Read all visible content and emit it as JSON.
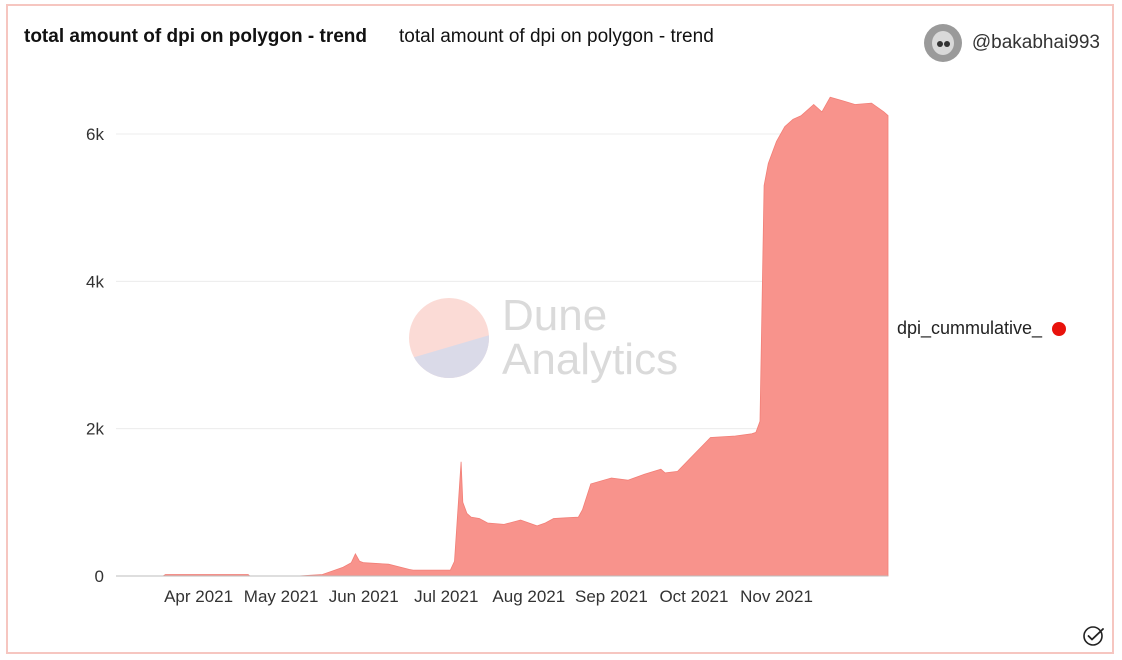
{
  "header": {
    "title": "total amount of dpi on polygon - trend",
    "subtitle": "total amount of dpi on polygon - trend",
    "username": "@bakabhai993"
  },
  "watermark": {
    "line1": "Dune",
    "line2": "Analytics"
  },
  "colors": {
    "area": "#f8938c",
    "legend_dot": "#e8120c",
    "border": "#f6c6c0"
  },
  "chart_data": {
    "type": "area",
    "title": "total amount of dpi on polygon - trend",
    "xlabel": "",
    "ylabel": "",
    "ylim": [
      0,
      6500
    ],
    "x_range": [
      0,
      9.35
    ],
    "grid": true,
    "legend_position": "right",
    "x_tick_labels": [
      "Apr 2021",
      "May 2021",
      "Jun 2021",
      "Jul 2021",
      "Aug 2021",
      "Sep 2021",
      "Oct 2021",
      "Nov 2021"
    ],
    "x_tick_values": [
      1,
      2,
      3,
      4,
      5,
      6,
      7,
      8
    ],
    "y_ticks": [
      {
        "value": 0,
        "label": "0"
      },
      {
        "value": 2000,
        "label": "2k"
      },
      {
        "value": 4000,
        "label": "4k"
      },
      {
        "value": 6000,
        "label": "6k"
      }
    ],
    "series": [
      {
        "name": "dpi_cummulative_",
        "x": [
          0,
          0.57,
          0.6,
          1.6,
          1.62,
          2.2,
          2.5,
          2.6,
          2.75,
          2.85,
          2.9,
          2.95,
          3.0,
          3.3,
          3.55,
          3.6,
          4.05,
          4.1,
          4.18,
          4.2,
          4.25,
          4.3,
          4.4,
          4.5,
          4.7,
          4.9,
          5.1,
          5.2,
          5.3,
          5.45,
          5.6,
          5.65,
          5.75,
          6.0,
          6.2,
          6.4,
          6.6,
          6.65,
          6.8,
          7.0,
          7.2,
          7.5,
          7.7,
          7.75,
          7.8,
          7.85,
          7.9,
          7.95,
          8.0,
          8.1,
          8.2,
          8.3,
          8.45,
          8.55,
          8.65,
          8.8,
          8.95,
          9.15,
          9.3,
          9.35
        ],
        "y": [
          0,
          0,
          20,
          20,
          0,
          0,
          20,
          60,
          120,
          180,
          300,
          200,
          180,
          160,
          90,
          80,
          80,
          200,
          1550,
          1000,
          850,
          800,
          780,
          720,
          700,
          760,
          680,
          720,
          780,
          790,
          800,
          900,
          1250,
          1330,
          1300,
          1380,
          1450,
          1400,
          1420,
          1650,
          1880,
          1900,
          1930,
          1950,
          2100,
          5300,
          5600,
          5750,
          5900,
          6100,
          6200,
          6250,
          6400,
          6300,
          6500,
          6450,
          6400,
          6420,
          6300,
          6250
        ]
      }
    ]
  }
}
